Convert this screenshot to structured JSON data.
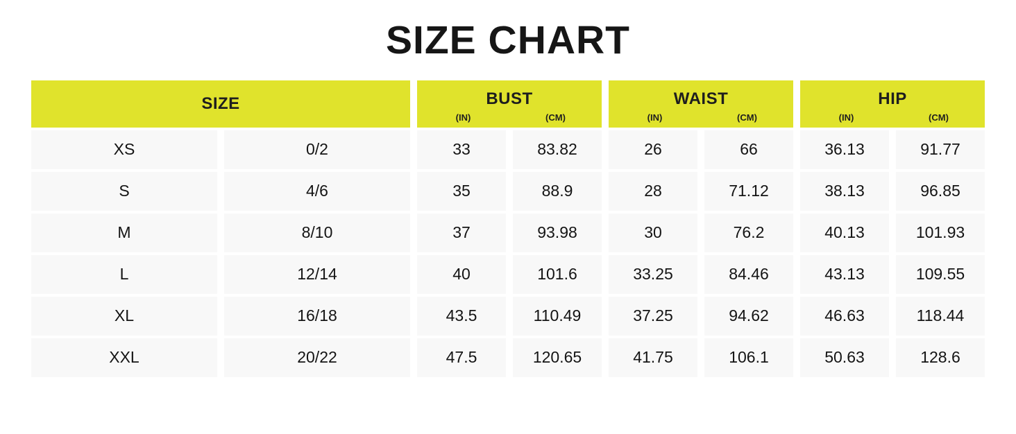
{
  "title": "SIZE CHART",
  "colors": {
    "header_bg": "#e0e32c",
    "row_bg": "#f8f8f8",
    "title_text": "#161616",
    "cell_text": "#141414"
  },
  "header": {
    "size": {
      "label": "SIZE"
    },
    "bust": {
      "label": "BUST",
      "in": "(IN)",
      "cm": "(CM)"
    },
    "waist": {
      "label": "WAIST",
      "in": "(IN)",
      "cm": "(CM)"
    },
    "hip": {
      "label": "HIP",
      "in": "(IN)",
      "cm": "(CM)"
    }
  },
  "chart_data": {
    "type": "table",
    "title": "SIZE CHART",
    "columns": [
      "SIZE (letter)",
      "SIZE (number)",
      "BUST (IN)",
      "BUST (CM)",
      "WAIST (IN)",
      "WAIST (CM)",
      "HIP (IN)",
      "HIP (CM)"
    ],
    "rows": [
      [
        "XS",
        "0/2",
        33,
        83.82,
        26,
        66,
        36.13,
        91.77
      ],
      [
        "S",
        "4/6",
        35,
        88.9,
        28,
        71.12,
        38.13,
        96.85
      ],
      [
        "M",
        "8/10",
        37,
        93.98,
        30,
        76.2,
        40.13,
        101.93
      ],
      [
        "L",
        "12/14",
        40,
        101.6,
        33.25,
        84.46,
        43.13,
        109.55
      ],
      [
        "XL",
        "16/18",
        43.5,
        110.49,
        37.25,
        94.62,
        46.63,
        118.44
      ],
      [
        "XXL",
        "20/22",
        47.5,
        120.65,
        41.75,
        106.1,
        50.63,
        128.6
      ]
    ]
  }
}
